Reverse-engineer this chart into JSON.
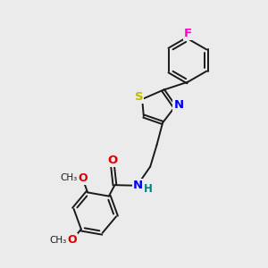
{
  "bg_color": "#ebebeb",
  "bond_color": "#1a1a1a",
  "bond_width": 1.4,
  "dbo": 0.07,
  "F_color": "#ff00cc",
  "S_color": "#bbbb00",
  "N_color": "#0000ee",
  "O_color": "#dd0000",
  "H_color": "#008080",
  "text_color": "#1a1a1a",
  "font_size": 8.5,
  "xlim": [
    0,
    10
  ],
  "ylim": [
    0,
    10
  ]
}
